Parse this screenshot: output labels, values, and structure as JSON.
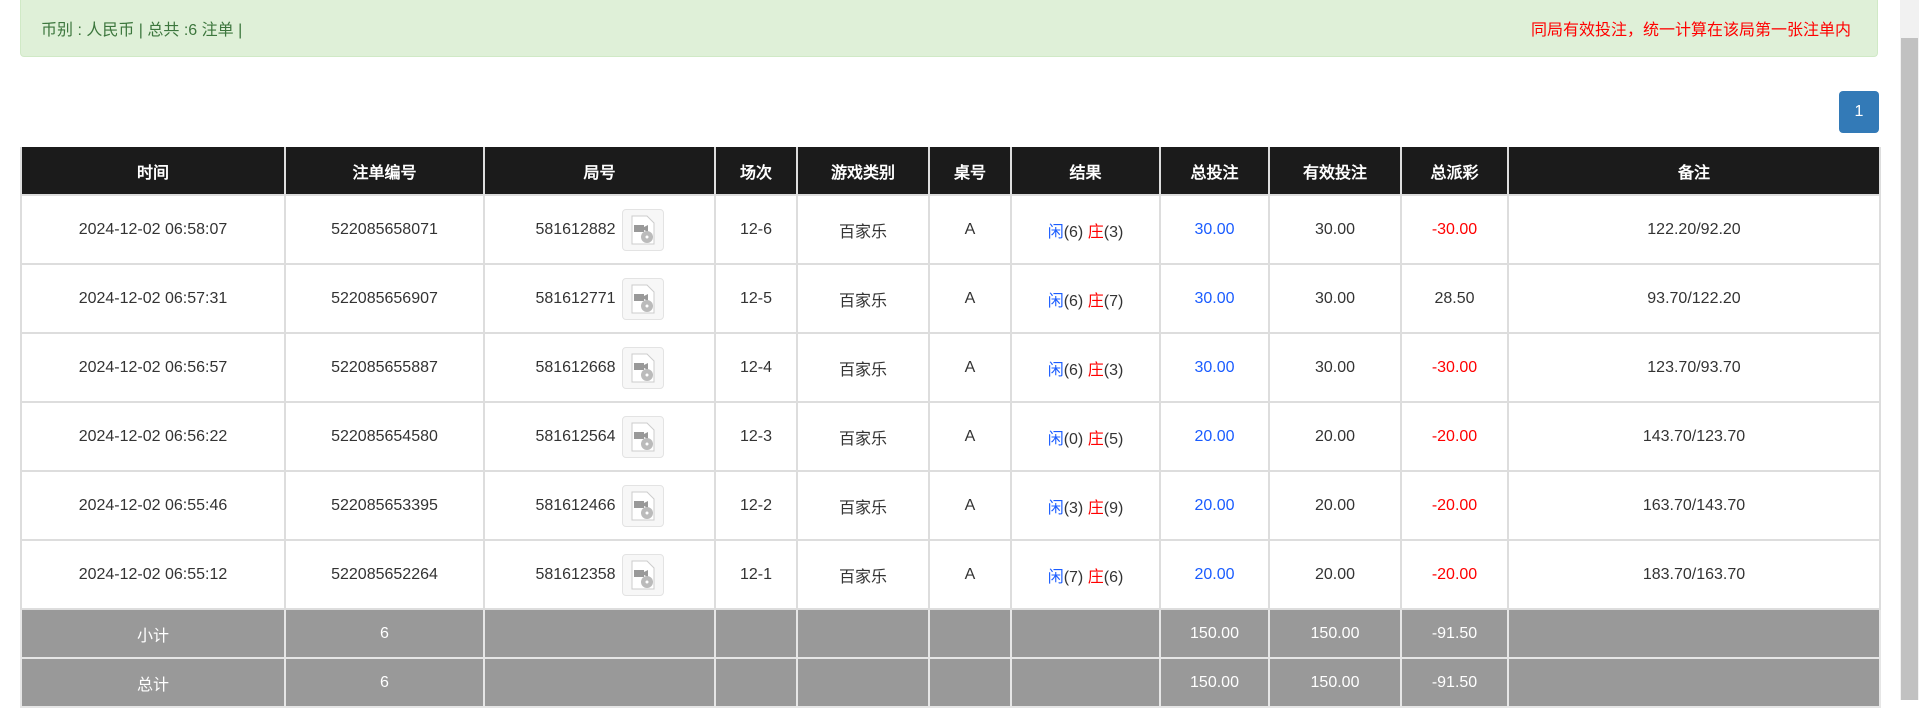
{
  "alert": {
    "summary": "币别 : 人民币 | 总共 :6 注单 |",
    "note": "同局有效投注，统一计算在该局第一张注单内"
  },
  "pagination": {
    "current": "1"
  },
  "table": {
    "headers": [
      "时间",
      "注单编号",
      "局号",
      "场次",
      "游戏类别",
      "桌号",
      "结果",
      "总投注",
      "有效投注",
      "总派彩",
      "备注"
    ],
    "rows": [
      {
        "time": "2024-12-02 06:58:07",
        "bet_id": "522085658071",
        "round": "581612882",
        "session": "12-6",
        "game": "百家乐",
        "table": "A",
        "player": "闲",
        "player_pts": "(6)",
        "banker": "庄",
        "banker_pts": "(3)",
        "total_bet": "30.00",
        "valid_bet": "30.00",
        "payout": "-30.00",
        "payout_neg": true,
        "remark": "122.20/92.20"
      },
      {
        "time": "2024-12-02 06:57:31",
        "bet_id": "522085656907",
        "round": "581612771",
        "session": "12-5",
        "game": "百家乐",
        "table": "A",
        "player": "闲",
        "player_pts": "(6)",
        "banker": "庄",
        "banker_pts": "(7)",
        "total_bet": "30.00",
        "valid_bet": "30.00",
        "payout": "28.50",
        "payout_neg": false,
        "remark": "93.70/122.20"
      },
      {
        "time": "2024-12-02 06:56:57",
        "bet_id": "522085655887",
        "round": "581612668",
        "session": "12-4",
        "game": "百家乐",
        "table": "A",
        "player": "闲",
        "player_pts": "(6)",
        "banker": "庄",
        "banker_pts": "(3)",
        "total_bet": "30.00",
        "valid_bet": "30.00",
        "payout": "-30.00",
        "payout_neg": true,
        "remark": "123.70/93.70"
      },
      {
        "time": "2024-12-02 06:56:22",
        "bet_id": "522085654580",
        "round": "581612564",
        "session": "12-3",
        "game": "百家乐",
        "table": "A",
        "player": "闲",
        "player_pts": "(0)",
        "banker": "庄",
        "banker_pts": "(5)",
        "total_bet": "20.00",
        "valid_bet": "20.00",
        "payout": "-20.00",
        "payout_neg": true,
        "remark": "143.70/123.70"
      },
      {
        "time": "2024-12-02 06:55:46",
        "bet_id": "522085653395",
        "round": "581612466",
        "session": "12-2",
        "game": "百家乐",
        "table": "A",
        "player": "闲",
        "player_pts": "(3)",
        "banker": "庄",
        "banker_pts": "(9)",
        "total_bet": "20.00",
        "valid_bet": "20.00",
        "payout": "-20.00",
        "payout_neg": true,
        "remark": "163.70/143.70"
      },
      {
        "time": "2024-12-02 06:55:12",
        "bet_id": "522085652264",
        "round": "581612358",
        "session": "12-1",
        "game": "百家乐",
        "table": "A",
        "player": "闲",
        "player_pts": "(7)",
        "banker": "庄",
        "banker_pts": "(6)",
        "total_bet": "20.00",
        "valid_bet": "20.00",
        "payout": "-20.00",
        "payout_neg": true,
        "remark": "183.70/163.70"
      }
    ],
    "subtotal": {
      "label": "小计",
      "count": "6",
      "total_bet": "150.00",
      "valid_bet": "150.00",
      "payout": "-91.50"
    },
    "total": {
      "label": "总计",
      "count": "6",
      "total_bet": "150.00",
      "valid_bet": "150.00",
      "payout": "-91.50"
    }
  },
  "colors": {
    "player": "#1a5cff",
    "banker": "#ff0000",
    "header_bg": "#1b1b1b",
    "sum_bg": "#999999",
    "alert_bg": "#dff0d8",
    "pager": "#337ab7"
  }
}
